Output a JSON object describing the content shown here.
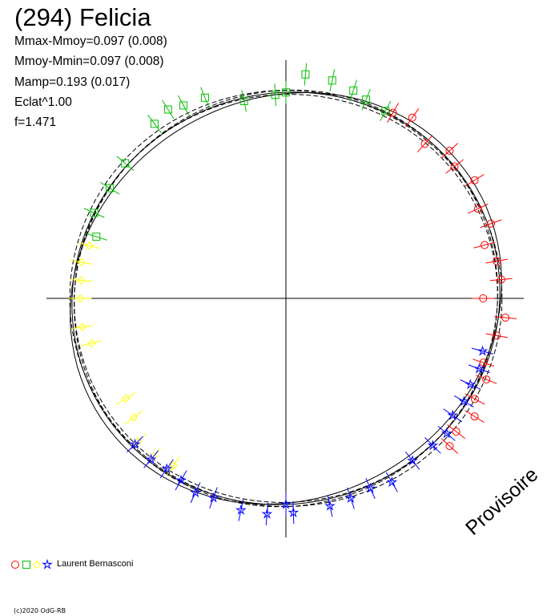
{
  "title": "(294) Felicia",
  "stats": [
    "Mmax-Mmoy=0.097 (0.008)",
    "Mmoy-Mmin=0.097 (0.008)",
    "Mamp=0.193 (0.017)",
    "Eclat^1.00",
    "f=1.471"
  ],
  "legend": {
    "observer": "Laurent Bernasconi"
  },
  "watermark": "Provisoire",
  "copyright": "(c)2020 OdG-RB",
  "colors": {
    "red": "#ff0000",
    "green": "#00c000",
    "yellow": "#ffff00",
    "blue": "#0000ff",
    "curve": "#000000",
    "axes": "#000000"
  },
  "chart_data": {
    "type": "scatter",
    "coordinate_system": "polar",
    "center_radius": 1.0,
    "curves": [
      {
        "style": "solid",
        "mean": 1.0,
        "amp": 0.05,
        "phase": 30
      },
      {
        "style": "solid",
        "mean": 1.0,
        "amp": 0.025,
        "phase": 200
      },
      {
        "style": "dashed",
        "mean": 1.01,
        "amp": 0.02,
        "phase": 180
      },
      {
        "style": "dashed",
        "mean": 1.0,
        "amp": 0.018,
        "phase": 210
      },
      {
        "style": "dashed",
        "mean": 0.99,
        "amp": 0.02,
        "phase": 190
      }
    ],
    "series": [
      {
        "name": "red",
        "marker": "circle",
        "points": [
          [
            60,
            1.02
          ],
          [
            55,
            1.05
          ],
          [
            48,
            0.99
          ],
          [
            42,
            1.05
          ],
          [
            38,
            1.02
          ],
          [
            32,
            1.06
          ],
          [
            25,
            1.01
          ],
          [
            20,
            1.04
          ],
          [
            15,
            0.98
          ],
          [
            10,
            1.02
          ],
          [
            5,
            1.03
          ],
          [
            0,
            0.94
          ],
          [
            -5,
            1.05
          ],
          [
            -10,
            1.02
          ],
          [
            -18,
            0.99
          ],
          [
            -22,
            1.03
          ],
          [
            -28,
            1.02
          ],
          [
            -32,
            1.06
          ],
          [
            -38,
            1.03
          ],
          [
            -42,
            1.05
          ]
        ]
      },
      {
        "name": "green",
        "marker": "square",
        "points": [
          [
            85,
            1.07
          ],
          [
            78,
            1.06
          ],
          [
            72,
            1.04
          ],
          [
            68,
            1.02
          ],
          [
            62,
            1.01
          ],
          [
            90,
            0.98
          ],
          [
            93,
            0.97
          ],
          [
            102,
            0.96
          ],
          [
            112,
            1.03
          ],
          [
            118,
            1.04
          ],
          [
            122,
            1.06
          ],
          [
            127,
            1.04
          ],
          [
            140,
            1.0
          ],
          [
            148,
            0.99
          ],
          [
            156,
            1.0
          ],
          [
            162,
            0.95
          ]
        ]
      },
      {
        "name": "yellow",
        "marker": "diamond",
        "points": [
          [
            165,
            0.97
          ],
          [
            170,
            0.99
          ],
          [
            175,
            0.98
          ],
          [
            180,
            0.98
          ],
          [
            188,
            0.98
          ],
          [
            193,
            0.95
          ],
          [
            212,
            0.9
          ],
          [
            218,
            0.92
          ],
          [
            224,
            0.98
          ],
          [
            230,
            0.98
          ],
          [
            236,
            0.96
          ]
        ]
      },
      {
        "name": "blue",
        "marker": "star",
        "points": [
          [
            -90,
            0.98
          ],
          [
            -95,
            1.03
          ],
          [
            -102,
            1.03
          ],
          [
            -110,
            1.01
          ],
          [
            -115,
            1.02
          ],
          [
            -120,
            1.0
          ],
          [
            -125,
            0.99
          ],
          [
            -130,
            1.0
          ],
          [
            -136,
            1.0
          ],
          [
            -88,
            1.02
          ],
          [
            -78,
            1.01
          ],
          [
            -72,
            1.0
          ],
          [
            -66,
            0.99
          ],
          [
            -60,
            1.01
          ],
          [
            -52,
            0.98
          ],
          [
            -45,
            0.99
          ],
          [
            -40,
            1.0
          ],
          [
            -35,
            0.97
          ],
          [
            -30,
            0.98
          ],
          [
            -25,
            0.97
          ],
          [
            -20,
            0.98
          ],
          [
            -15,
            0.97
          ]
        ]
      }
    ]
  }
}
